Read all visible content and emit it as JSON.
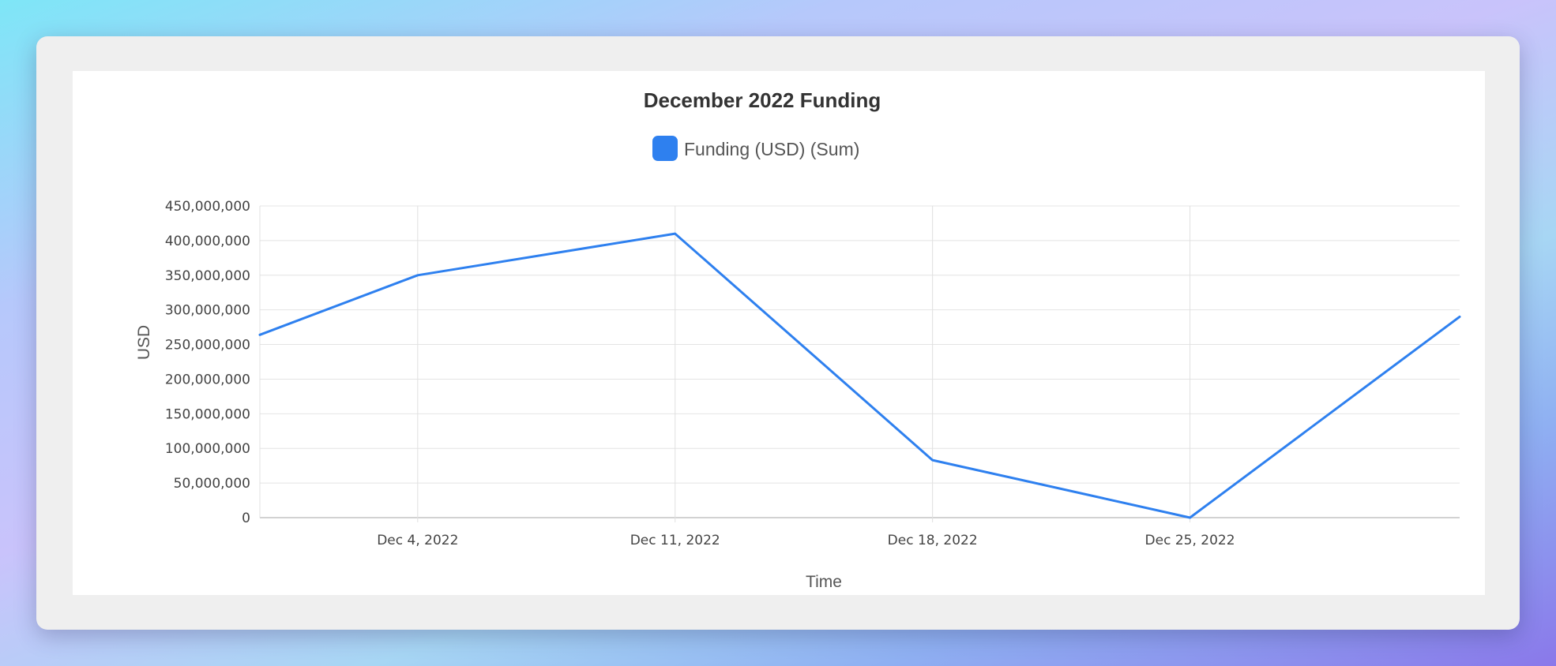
{
  "chart_data": {
    "type": "line",
    "title": "December 2022 Funding",
    "xlabel": "Time",
    "ylabel": "USD",
    "ylim": [
      0,
      450000000
    ],
    "yticks": [
      0,
      50000000,
      100000000,
      150000000,
      200000000,
      250000000,
      300000000,
      350000000,
      400000000,
      450000000
    ],
    "ytick_labels": [
      "0",
      "50,000,000",
      "100,000,000",
      "150,000,000",
      "200,000,000",
      "250,000,000",
      "300,000,000",
      "350,000,000",
      "400,000,000",
      "450,000,000"
    ],
    "xlim": [
      "2022-11-29T17:00",
      "2023-01-01T08:00"
    ],
    "xticks": [
      "2022-12-04",
      "2022-12-11",
      "2022-12-18",
      "2022-12-25"
    ],
    "xtick_labels": [
      "Dec 4, 2022",
      "Dec 11, 2022",
      "Dec 18, 2022",
      "Dec 25, 2022"
    ],
    "grid": true,
    "legend_position": "top-center",
    "series": [
      {
        "name": "Funding (USD) (Sum)",
        "color": "#2e80ef",
        "points": [
          {
            "x": "2022-11-29T17:00",
            "y": 264000000
          },
          {
            "x": "2022-12-04",
            "y": 350000000
          },
          {
            "x": "2022-12-11",
            "y": 410000000
          },
          {
            "x": "2022-12-18",
            "y": 83000000
          },
          {
            "x": "2022-12-25",
            "y": 0
          },
          {
            "x": "2023-01-01T08:00",
            "y": 290000000
          }
        ]
      }
    ]
  }
}
